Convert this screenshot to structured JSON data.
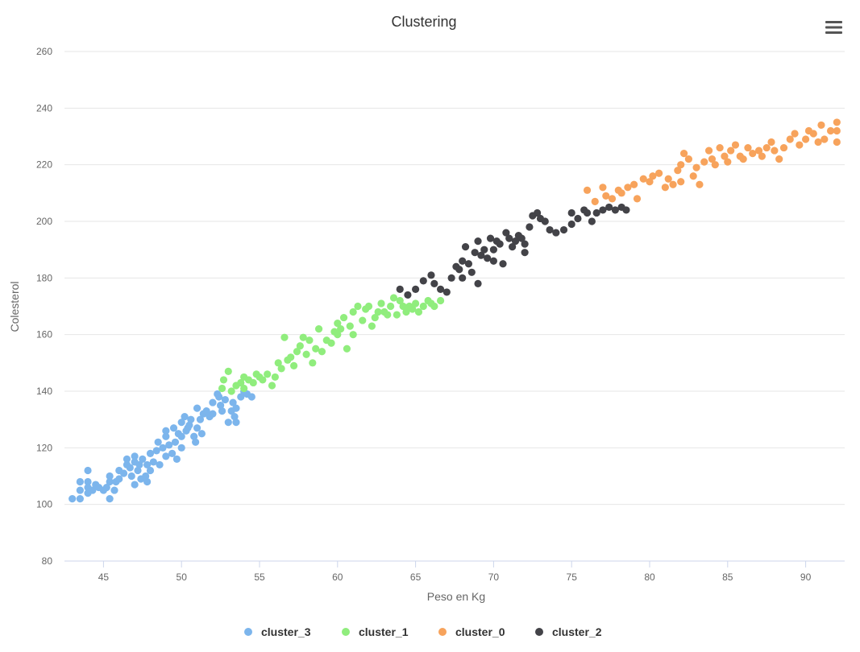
{
  "chart_data": {
    "type": "scatter",
    "title": "Clustering",
    "xlabel": "Peso en Kg",
    "ylabel": "Colesterol",
    "xlim": [
      42.5,
      92.5
    ],
    "ylim": [
      80,
      260
    ],
    "x_ticks": [
      45,
      50,
      55,
      60,
      65,
      70,
      75,
      80,
      85,
      90
    ],
    "y_ticks": [
      80,
      100,
      120,
      140,
      160,
      180,
      200,
      220,
      240,
      260
    ],
    "grid": "horizontal",
    "legend_position": "bottom",
    "series": [
      {
        "name": "cluster_3",
        "color": "#7cb5ec",
        "points": [
          [
            43,
            102
          ],
          [
            43.5,
            102
          ],
          [
            43.5,
            105
          ],
          [
            43.5,
            108
          ],
          [
            44,
            104
          ],
          [
            44,
            106
          ],
          [
            44,
            108
          ],
          [
            44,
            112
          ],
          [
            44.3,
            105
          ],
          [
            44.5,
            107
          ],
          [
            44.7,
            106
          ],
          [
            45,
            105
          ],
          [
            45.2,
            106
          ],
          [
            45.4,
            108
          ],
          [
            45.4,
            110
          ],
          [
            45.4,
            102
          ],
          [
            45.7,
            105
          ],
          [
            45.8,
            108
          ],
          [
            46,
            109
          ],
          [
            46,
            112
          ],
          [
            46.3,
            111
          ],
          [
            46.5,
            114
          ],
          [
            46.5,
            116
          ],
          [
            46.7,
            113
          ],
          [
            46.8,
            110
          ],
          [
            47,
            107
          ],
          [
            47,
            115
          ],
          [
            47,
            117
          ],
          [
            47.2,
            112
          ],
          [
            47.3,
            114
          ],
          [
            47.4,
            109
          ],
          [
            47.5,
            116
          ],
          [
            47.7,
            110
          ],
          [
            47.8,
            108
          ],
          [
            47.8,
            114
          ],
          [
            48,
            118
          ],
          [
            48,
            112
          ],
          [
            48.2,
            115
          ],
          [
            48.4,
            119
          ],
          [
            48.5,
            122
          ],
          [
            48.6,
            114
          ],
          [
            48.8,
            120
          ],
          [
            49,
            117
          ],
          [
            49,
            124
          ],
          [
            49,
            126
          ],
          [
            49.2,
            121
          ],
          [
            49.4,
            118
          ],
          [
            49.5,
            127
          ],
          [
            49.6,
            122
          ],
          [
            49.7,
            116
          ],
          [
            49.8,
            125
          ],
          [
            50,
            129
          ],
          [
            50,
            124
          ],
          [
            50,
            120
          ],
          [
            50.2,
            131
          ],
          [
            50.3,
            126
          ],
          [
            50.4,
            127
          ],
          [
            50.5,
            128
          ],
          [
            50.6,
            130
          ],
          [
            50.8,
            124
          ],
          [
            50.9,
            122
          ],
          [
            51,
            134
          ],
          [
            51,
            127
          ],
          [
            51.2,
            130
          ],
          [
            51.3,
            125
          ],
          [
            51.4,
            132
          ],
          [
            51.6,
            133
          ],
          [
            51.8,
            131
          ],
          [
            52,
            136
          ],
          [
            52,
            132
          ],
          [
            52.3,
            139
          ],
          [
            52.4,
            138
          ],
          [
            52.5,
            135
          ],
          [
            52.6,
            133
          ],
          [
            52.8,
            137
          ],
          [
            53,
            129
          ],
          [
            53.2,
            133
          ],
          [
            53.3,
            136
          ],
          [
            53.4,
            131
          ],
          [
            53.5,
            129
          ],
          [
            53.5,
            134
          ],
          [
            53.8,
            138
          ],
          [
            54,
            140
          ],
          [
            54.2,
            139
          ],
          [
            54.5,
            138
          ]
        ]
      },
      {
        "name": "cluster_1",
        "color": "#90ed7d",
        "points": [
          [
            52.6,
            141
          ],
          [
            52.7,
            144
          ],
          [
            53,
            147
          ],
          [
            53.2,
            140
          ],
          [
            53.5,
            142
          ],
          [
            53.8,
            143
          ],
          [
            54,
            141
          ],
          [
            54,
            145
          ],
          [
            54.3,
            144
          ],
          [
            54.6,
            143
          ],
          [
            54.8,
            146
          ],
          [
            55,
            145
          ],
          [
            55.2,
            144
          ],
          [
            55.5,
            146
          ],
          [
            55.8,
            142
          ],
          [
            56,
            145
          ],
          [
            56.2,
            150
          ],
          [
            56.4,
            148
          ],
          [
            56.6,
            159
          ],
          [
            56.8,
            151
          ],
          [
            57,
            152
          ],
          [
            57.2,
            149
          ],
          [
            57.4,
            154
          ],
          [
            57.6,
            156
          ],
          [
            57.8,
            159
          ],
          [
            58,
            153
          ],
          [
            58.2,
            158
          ],
          [
            58.4,
            150
          ],
          [
            58.6,
            155
          ],
          [
            58.8,
            162
          ],
          [
            59,
            154
          ],
          [
            59.3,
            158
          ],
          [
            59.6,
            157
          ],
          [
            59.8,
            161
          ],
          [
            60,
            164
          ],
          [
            60,
            160
          ],
          [
            60.2,
            162
          ],
          [
            60.4,
            166
          ],
          [
            60.6,
            155
          ],
          [
            60.8,
            163
          ],
          [
            61,
            168
          ],
          [
            61,
            160
          ],
          [
            61.3,
            170
          ],
          [
            61.6,
            165
          ],
          [
            61.8,
            169
          ],
          [
            62,
            170
          ],
          [
            62.2,
            163
          ],
          [
            62.4,
            166
          ],
          [
            62.6,
            168
          ],
          [
            62.8,
            171
          ],
          [
            63,
            168
          ],
          [
            63.2,
            167
          ],
          [
            63.4,
            170
          ],
          [
            63.6,
            173
          ],
          [
            63.8,
            167
          ],
          [
            64,
            172
          ],
          [
            64.2,
            170
          ],
          [
            64.4,
            168
          ],
          [
            64.6,
            170
          ],
          [
            64.8,
            169
          ],
          [
            65,
            171
          ],
          [
            65.2,
            168
          ],
          [
            65.5,
            170
          ],
          [
            65.8,
            172
          ],
          [
            66,
            171
          ],
          [
            66.2,
            170
          ],
          [
            66.6,
            172
          ]
        ]
      },
      {
        "name": "cluster_0",
        "color": "#f7a35c",
        "points": [
          [
            76,
            211
          ],
          [
            76.5,
            207
          ],
          [
            77,
            212
          ],
          [
            77.2,
            209
          ],
          [
            77.6,
            208
          ],
          [
            78,
            211
          ],
          [
            78.2,
            210
          ],
          [
            78.6,
            212
          ],
          [
            79,
            213
          ],
          [
            79.2,
            208
          ],
          [
            79.6,
            215
          ],
          [
            80,
            214
          ],
          [
            80.2,
            216
          ],
          [
            80.6,
            217
          ],
          [
            81,
            212
          ],
          [
            81.2,
            215
          ],
          [
            81.5,
            213
          ],
          [
            81.8,
            218
          ],
          [
            82,
            220
          ],
          [
            82,
            214
          ],
          [
            82.2,
            224
          ],
          [
            82.5,
            222
          ],
          [
            82.8,
            216
          ],
          [
            83,
            219
          ],
          [
            83.2,
            213
          ],
          [
            83.5,
            221
          ],
          [
            83.8,
            225
          ],
          [
            84,
            222
          ],
          [
            84.2,
            220
          ],
          [
            84.5,
            226
          ],
          [
            84.8,
            223
          ],
          [
            85,
            221
          ],
          [
            85.2,
            225
          ],
          [
            85.5,
            227
          ],
          [
            85.8,
            223
          ],
          [
            86,
            222
          ],
          [
            86.3,
            226
          ],
          [
            86.6,
            224
          ],
          [
            87,
            225
          ],
          [
            87.2,
            223
          ],
          [
            87.5,
            226
          ],
          [
            87.8,
            228
          ],
          [
            88,
            225
          ],
          [
            88.3,
            222
          ],
          [
            88.6,
            226
          ],
          [
            89,
            229
          ],
          [
            89.3,
            231
          ],
          [
            89.6,
            227
          ],
          [
            90,
            229
          ],
          [
            90.2,
            232
          ],
          [
            90.5,
            231
          ],
          [
            90.8,
            228
          ],
          [
            91,
            234
          ],
          [
            91.2,
            229
          ],
          [
            91.6,
            232
          ],
          [
            92,
            235
          ],
          [
            92,
            232
          ],
          [
            92,
            228
          ]
        ]
      },
      {
        "name": "cluster_2",
        "color": "#434348",
        "points": [
          [
            64,
            176
          ],
          [
            64.5,
            174
          ],
          [
            65,
            176
          ],
          [
            65.5,
            179
          ],
          [
            66,
            181
          ],
          [
            66.2,
            178
          ],
          [
            66.6,
            176
          ],
          [
            67,
            175
          ],
          [
            67.3,
            180
          ],
          [
            67.6,
            184
          ],
          [
            67.8,
            183
          ],
          [
            68,
            186
          ],
          [
            68,
            180
          ],
          [
            68.2,
            191
          ],
          [
            68.4,
            185
          ],
          [
            68.6,
            182
          ],
          [
            68.8,
            189
          ],
          [
            69,
            193
          ],
          [
            69,
            178
          ],
          [
            69.2,
            188
          ],
          [
            69.4,
            190
          ],
          [
            69.6,
            187
          ],
          [
            69.8,
            194
          ],
          [
            70,
            190
          ],
          [
            70,
            186
          ],
          [
            70.2,
            193
          ],
          [
            70.4,
            192
          ],
          [
            70.6,
            185
          ],
          [
            70.8,
            196
          ],
          [
            71,
            194
          ],
          [
            71.2,
            191
          ],
          [
            71.4,
            193
          ],
          [
            71.6,
            195
          ],
          [
            71.8,
            194
          ],
          [
            72,
            192
          ],
          [
            72,
            189
          ],
          [
            72.3,
            198
          ],
          [
            72.5,
            202
          ],
          [
            72.8,
            203
          ],
          [
            73,
            201
          ],
          [
            73.3,
            200
          ],
          [
            73.6,
            197
          ],
          [
            74,
            196
          ],
          [
            74.5,
            197
          ],
          [
            75,
            203
          ],
          [
            75,
            199
          ],
          [
            75.4,
            201
          ],
          [
            75.8,
            204
          ],
          [
            76,
            203
          ],
          [
            76.3,
            200
          ],
          [
            76.6,
            203
          ],
          [
            77,
            204
          ],
          [
            77.4,
            205
          ],
          [
            77.8,
            204
          ],
          [
            78.2,
            205
          ],
          [
            78.5,
            204
          ]
        ]
      }
    ]
  }
}
